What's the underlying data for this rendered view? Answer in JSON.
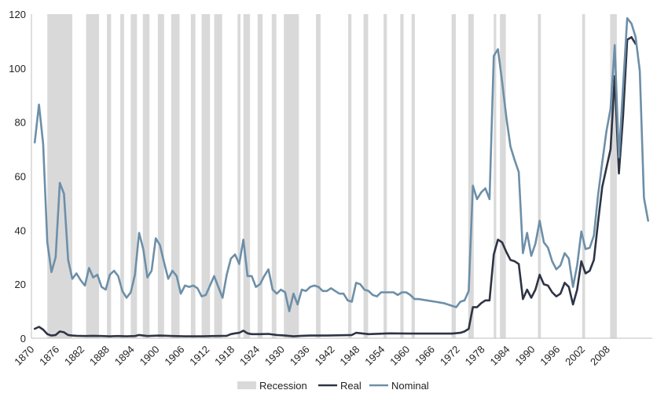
{
  "chart_data": {
    "type": "line",
    "title": "",
    "xlabel": "",
    "ylabel": "",
    "xlim": [
      1870,
      2015
    ],
    "ylim": [
      0,
      120
    ],
    "y_ticks": [
      0,
      20,
      40,
      60,
      80,
      100,
      120
    ],
    "x_ticks": [
      1870,
      1876,
      1882,
      1888,
      1894,
      1900,
      1906,
      1912,
      1918,
      1924,
      1930,
      1936,
      1942,
      1948,
      1954,
      1960,
      1966,
      1972,
      1978,
      1984,
      1990,
      1996,
      2002,
      2008
    ],
    "grid": false,
    "legend_position": "bottom",
    "recessions": [
      [
        1873.0,
        1879.0
      ],
      [
        1882.3,
        1885.4
      ],
      [
        1887.3,
        1888.3
      ],
      [
        1890.5,
        1891.4
      ],
      [
        1893.0,
        1894.5
      ],
      [
        1895.9,
        1897.5
      ],
      [
        1899.5,
        1901.0
      ],
      [
        1902.7,
        1904.7
      ],
      [
        1907.4,
        1908.5
      ],
      [
        1910.0,
        1912.0
      ],
      [
        1913.0,
        1914.9
      ],
      [
        1918.6,
        1919.3
      ],
      [
        1920.0,
        1921.6
      ],
      [
        1923.4,
        1924.6
      ],
      [
        1926.8,
        1927.9
      ],
      [
        1929.7,
        1933.3
      ],
      [
        1937.4,
        1938.5
      ],
      [
        1945.1,
        1945.9
      ],
      [
        1948.8,
        1949.9
      ],
      [
        1953.6,
        1954.4
      ],
      [
        1957.6,
        1958.4
      ],
      [
        1960.3,
        1961.1
      ],
      [
        1969.9,
        1970.9
      ],
      [
        1973.9,
        1975.2
      ],
      [
        1980.0,
        1980.6
      ],
      [
        1981.5,
        1982.9
      ],
      [
        1990.6,
        1991.3
      ],
      [
        2001.2,
        2001.9
      ],
      [
        2007.9,
        2009.5
      ]
    ],
    "series": [
      {
        "name": "Recession",
        "color": "#d9d9d9"
      },
      {
        "name": "Real",
        "color": "#2e3444",
        "points": [
          [
            1870,
            3.5
          ],
          [
            1871,
            4.2
          ],
          [
            1872,
            3.2
          ],
          [
            1873,
            1.5
          ],
          [
            1874,
            1.0
          ],
          [
            1875,
            1.2
          ],
          [
            1876,
            2.5
          ],
          [
            1877,
            2.2
          ],
          [
            1878,
            1.2
          ],
          [
            1879,
            1.0
          ],
          [
            1880,
            0.9
          ],
          [
            1882,
            0.8
          ],
          [
            1884,
            0.9
          ],
          [
            1886,
            0.8
          ],
          [
            1888,
            0.7
          ],
          [
            1890,
            0.8
          ],
          [
            1892,
            0.7
          ],
          [
            1894,
            0.8
          ],
          [
            1895,
            1.2
          ],
          [
            1897,
            0.8
          ],
          [
            1900,
            1.0
          ],
          [
            1903,
            0.8
          ],
          [
            1906,
            0.7
          ],
          [
            1910,
            0.7
          ],
          [
            1913,
            0.8
          ],
          [
            1916,
            0.9
          ],
          [
            1917,
            1.5
          ],
          [
            1918,
            1.8
          ],
          [
            1919,
            2.0
          ],
          [
            1920,
            2.8
          ],
          [
            1921,
            1.8
          ],
          [
            1922,
            1.5
          ],
          [
            1924,
            1.5
          ],
          [
            1926,
            1.6
          ],
          [
            1928,
            1.2
          ],
          [
            1930,
            1.0
          ],
          [
            1932,
            0.7
          ],
          [
            1934,
            0.9
          ],
          [
            1936,
            1.0
          ],
          [
            1940,
            1.0
          ],
          [
            1946,
            1.2
          ],
          [
            1947,
            2.0
          ],
          [
            1950,
            1.5
          ],
          [
            1955,
            1.8
          ],
          [
            1960,
            1.7
          ],
          [
            1965,
            1.7
          ],
          [
            1970,
            1.7
          ],
          [
            1972,
            2.0
          ],
          [
            1973,
            2.5
          ],
          [
            1974,
            3.5
          ],
          [
            1975,
            11.5
          ],
          [
            1976,
            11.5
          ],
          [
            1977,
            13.0
          ],
          [
            1978,
            14.0
          ],
          [
            1979,
            14.0
          ],
          [
            1980,
            31.0
          ],
          [
            1981,
            36.5
          ],
          [
            1982,
            35.5
          ],
          [
            1983,
            32.0
          ],
          [
            1984,
            29.0
          ],
          [
            1985,
            28.5
          ],
          [
            1986,
            27.5
          ],
          [
            1987,
            14.5
          ],
          [
            1988,
            18.0
          ],
          [
            1989,
            15.0
          ],
          [
            1990,
            18.0
          ],
          [
            1991,
            23.5
          ],
          [
            1992,
            20.0
          ],
          [
            1993,
            19.5
          ],
          [
            1994,
            17.0
          ],
          [
            1995,
            15.5
          ],
          [
            1996,
            16.5
          ],
          [
            1997,
            20.5
          ],
          [
            1998,
            19.0
          ],
          [
            1999,
            12.5
          ],
          [
            2000,
            18.0
          ],
          [
            2001,
            28.5
          ],
          [
            2002,
            24.0
          ],
          [
            2003,
            25.0
          ],
          [
            2004,
            29.0
          ],
          [
            2005,
            43.0
          ],
          [
            2006,
            56.0
          ],
          [
            2007,
            63.0
          ],
          [
            2008,
            70.0
          ],
          [
            2009,
            97.0
          ],
          [
            2010,
            61.0
          ],
          [
            2011,
            82.0
          ],
          [
            2012,
            110.5
          ],
          [
            2013,
            111.5
          ],
          [
            2014,
            109.0
          ]
        ]
      },
      {
        "name": "Nominal",
        "color": "#6d8fa8",
        "points": [
          [
            1870,
            72.5
          ],
          [
            1871,
            86.5
          ],
          [
            1872,
            72.0
          ],
          [
            1873,
            35.5
          ],
          [
            1874,
            24.5
          ],
          [
            1875,
            30.0
          ],
          [
            1876,
            57.5
          ],
          [
            1877,
            53.5
          ],
          [
            1878,
            29.0
          ],
          [
            1879,
            22.0
          ],
          [
            1880,
            24.0
          ],
          [
            1881,
            21.5
          ],
          [
            1882,
            19.5
          ],
          [
            1883,
            26.0
          ],
          [
            1884,
            22.5
          ],
          [
            1885,
            23.5
          ],
          [
            1886,
            19.0
          ],
          [
            1887,
            18.0
          ],
          [
            1888,
            23.5
          ],
          [
            1889,
            25.0
          ],
          [
            1890,
            23.0
          ],
          [
            1891,
            17.5
          ],
          [
            1892,
            15.0
          ],
          [
            1893,
            17.0
          ],
          [
            1894,
            23.5
          ],
          [
            1895,
            39.0
          ],
          [
            1896,
            33.0
          ],
          [
            1897,
            22.5
          ],
          [
            1898,
            25.0
          ],
          [
            1899,
            37.0
          ],
          [
            1900,
            34.5
          ],
          [
            1901,
            28.0
          ],
          [
            1902,
            22.0
          ],
          [
            1903,
            25.0
          ],
          [
            1904,
            23.0
          ],
          [
            1905,
            16.5
          ],
          [
            1906,
            19.5
          ],
          [
            1907,
            19.0
          ],
          [
            1908,
            19.5
          ],
          [
            1909,
            18.5
          ],
          [
            1910,
            15.5
          ],
          [
            1911,
            16.0
          ],
          [
            1912,
            19.5
          ],
          [
            1913,
            23.0
          ],
          [
            1914,
            19.0
          ],
          [
            1915,
            15.0
          ],
          [
            1916,
            23.5
          ],
          [
            1917,
            29.5
          ],
          [
            1918,
            31.0
          ],
          [
            1919,
            27.5
          ],
          [
            1920,
            36.5
          ],
          [
            1921,
            23.0
          ],
          [
            1922,
            23.0
          ],
          [
            1923,
            19.0
          ],
          [
            1924,
            20.0
          ],
          [
            1925,
            23.0
          ],
          [
            1926,
            25.5
          ],
          [
            1927,
            18.0
          ],
          [
            1928,
            16.5
          ],
          [
            1929,
            18.0
          ],
          [
            1930,
            17.0
          ],
          [
            1931,
            10.0
          ],
          [
            1932,
            16.5
          ],
          [
            1933,
            12.5
          ],
          [
            1934,
            18.0
          ],
          [
            1935,
            17.5
          ],
          [
            1936,
            19.0
          ],
          [
            1937,
            19.5
          ],
          [
            1938,
            19.0
          ],
          [
            1939,
            17.5
          ],
          [
            1940,
            17.5
          ],
          [
            1941,
            18.5
          ],
          [
            1942,
            17.5
          ],
          [
            1943,
            16.5
          ],
          [
            1944,
            16.5
          ],
          [
            1945,
            14.0
          ],
          [
            1946,
            13.5
          ],
          [
            1947,
            20.5
          ],
          [
            1948,
            20.0
          ],
          [
            1949,
            18.0
          ],
          [
            1950,
            17.5
          ],
          [
            1951,
            16.0
          ],
          [
            1952,
            15.5
          ],
          [
            1953,
            17.0
          ],
          [
            1954,
            17.0
          ],
          [
            1955,
            17.0
          ],
          [
            1956,
            17.0
          ],
          [
            1957,
            16.0
          ],
          [
            1958,
            17.0
          ],
          [
            1959,
            17.0
          ],
          [
            1960,
            16.0
          ],
          [
            1961,
            14.5
          ],
          [
            1962,
            14.5
          ],
          [
            1964,
            14.0
          ],
          [
            1966,
            13.5
          ],
          [
            1968,
            13.0
          ],
          [
            1970,
            12.0
          ],
          [
            1971,
            11.5
          ],
          [
            1972,
            13.5
          ],
          [
            1973,
            14.0
          ],
          [
            1974,
            17.5
          ],
          [
            1975,
            56.5
          ],
          [
            1976,
            51.5
          ],
          [
            1977,
            54.0
          ],
          [
            1978,
            55.5
          ],
          [
            1979,
            51.5
          ],
          [
            1980,
            104.5
          ],
          [
            1981,
            107.0
          ],
          [
            1982,
            95.0
          ],
          [
            1983,
            82.0
          ],
          [
            1984,
            71.0
          ],
          [
            1985,
            66.0
          ],
          [
            1986,
            61.5
          ],
          [
            1987,
            31.5
          ],
          [
            1988,
            39.0
          ],
          [
            1989,
            30.5
          ],
          [
            1990,
            35.0
          ],
          [
            1991,
            43.5
          ],
          [
            1992,
            35.5
          ],
          [
            1993,
            33.5
          ],
          [
            1994,
            28.5
          ],
          [
            1995,
            25.5
          ],
          [
            1996,
            27.0
          ],
          [
            1997,
            31.5
          ],
          [
            1998,
            29.5
          ],
          [
            1999,
            19.0
          ],
          [
            2000,
            27.0
          ],
          [
            2001,
            39.5
          ],
          [
            2002,
            33.0
          ],
          [
            2003,
            33.5
          ],
          [
            2004,
            38.0
          ],
          [
            2005,
            53.0
          ],
          [
            2006,
            65.0
          ],
          [
            2007,
            76.5
          ],
          [
            2008,
            85.0
          ],
          [
            2009,
            108.5
          ],
          [
            2010,
            67.0
          ],
          [
            2011,
            93.0
          ],
          [
            2012,
            118.5
          ],
          [
            2013,
            116.5
          ],
          [
            2014,
            111.5
          ],
          [
            2015,
            99.0
          ],
          [
            2016,
            52.0
          ],
          [
            2017,
            43.5
          ]
        ]
      }
    ]
  }
}
